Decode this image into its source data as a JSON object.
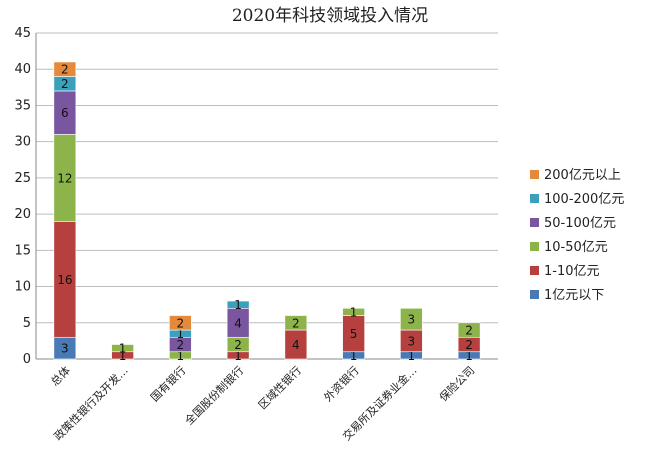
{
  "chart_data": {
    "type": "bar",
    "stacked": true,
    "title": "2020年科技领域投入情况",
    "categories": [
      "总体",
      "政策性银行及开发…",
      "国有银行",
      "全国股份制银行",
      "区域性银行",
      "外资银行",
      "交易所及证券业金…",
      "保险公司"
    ],
    "ylim": [
      0,
      45
    ],
    "yticks": [
      0,
      5,
      10,
      15,
      20,
      25,
      30,
      35,
      40,
      45
    ],
    "grid": true,
    "legend_position": "right",
    "series": [
      {
        "name": "1亿元以下",
        "color": "#4a7ab5",
        "values": [
          3,
          0,
          0,
          0,
          0,
          1,
          1,
          1
        ]
      },
      {
        "name": "1-10亿元",
        "color": "#b5403d",
        "values": [
          16,
          1,
          0,
          1,
          4,
          5,
          3,
          2
        ]
      },
      {
        "name": "10-50亿元",
        "color": "#8db44a",
        "values": [
          12,
          1,
          1,
          2,
          2,
          1,
          3,
          2
        ]
      },
      {
        "name": "50-100亿元",
        "color": "#7a55a0",
        "values": [
          6,
          0,
          2,
          4,
          0,
          0,
          0,
          0
        ]
      },
      {
        "name": "100-200亿元",
        "color": "#3ba0bc",
        "values": [
          2,
          0,
          1,
          1,
          0,
          0,
          0,
          0
        ]
      },
      {
        "name": "200亿元以上",
        "color": "#e58a3a",
        "values": [
          2,
          0,
          2,
          0,
          0,
          0,
          0,
          0
        ]
      }
    ]
  }
}
